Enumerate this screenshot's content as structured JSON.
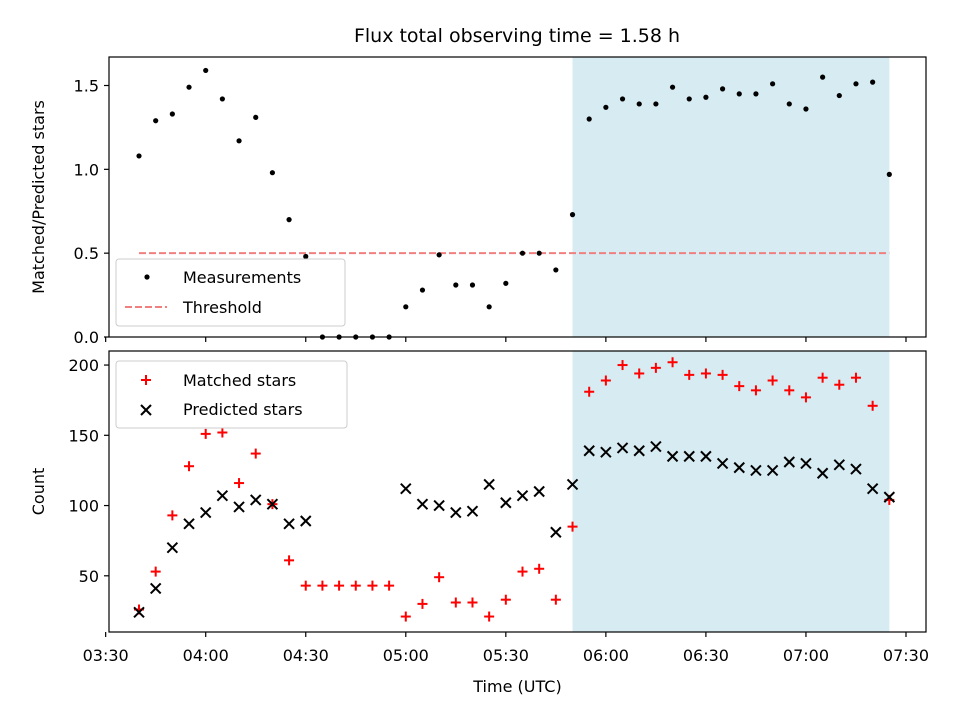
{
  "chart_data": [
    {
      "type": "scatter",
      "title": "Flux total observing time = 1.58 h",
      "xlabel": "",
      "ylabel": "Matched/Predicted stars",
      "ylim": [
        0,
        1.67
      ],
      "yticks": [
        0.0,
        0.5,
        1.0,
        1.5
      ],
      "ytick_labels": [
        "0.0",
        "0.5",
        "1.0",
        "1.5"
      ],
      "x_time_range": [
        "03:31",
        "07:36"
      ],
      "shaded_span": {
        "from": "05:50",
        "to": "07:25",
        "color": "#add8e6"
      },
      "legend": {
        "position": "lower-left",
        "entries": [
          "Measurements",
          "Threshold"
        ]
      },
      "threshold": {
        "name": "Threshold",
        "value": 0.5,
        "from": "03:40",
        "to": "07:25",
        "color": "#f08080",
        "style": "dashed"
      },
      "series": [
        {
          "name": "Measurements",
          "marker": "dot",
          "color": "#000000",
          "x": [
            "03:40",
            "03:45",
            "03:50",
            "03:55",
            "04:00",
            "04:05",
            "04:10",
            "04:15",
            "04:20",
            "04:25",
            "04:30",
            "04:35",
            "04:40",
            "04:45",
            "04:50",
            "04:55",
            "05:00",
            "05:05",
            "05:10",
            "05:15",
            "05:20",
            "05:25",
            "05:30",
            "05:35",
            "05:40",
            "05:45",
            "05:50",
            "05:55",
            "06:00",
            "06:05",
            "06:10",
            "06:15",
            "06:20",
            "06:25",
            "06:30",
            "06:35",
            "06:40",
            "06:45",
            "06:50",
            "06:55",
            "07:00",
            "07:05",
            "07:10",
            "07:15",
            "07:20",
            "07:25"
          ],
          "values": [
            1.08,
            1.29,
            1.33,
            1.49,
            1.59,
            1.42,
            1.17,
            1.31,
            0.98,
            0.7,
            0.48,
            0.0,
            0.0,
            0.0,
            0.0,
            0.0,
            0.18,
            0.28,
            0.49,
            0.31,
            0.31,
            0.18,
            0.32,
            0.5,
            0.5,
            0.4,
            0.73,
            1.3,
            1.37,
            1.42,
            1.39,
            1.39,
            1.49,
            1.42,
            1.43,
            1.48,
            1.45,
            1.45,
            1.51,
            1.39,
            1.36,
            1.55,
            1.44,
            1.51,
            1.52,
            0.97
          ]
        }
      ]
    },
    {
      "type": "scatter",
      "title": "",
      "xlabel": "Time (UTC)",
      "ylabel": "Count",
      "ylim": [
        10,
        210
      ],
      "yticks": [
        50,
        100,
        150,
        200
      ],
      "ytick_labels": [
        "50",
        "100",
        "150",
        "200"
      ],
      "xticks": [
        "03:30",
        "04:00",
        "04:30",
        "05:00",
        "05:30",
        "06:00",
        "06:30",
        "07:00",
        "07:30"
      ],
      "x_time_range": [
        "03:31",
        "07:36"
      ],
      "shaded_span": {
        "from": "05:50",
        "to": "07:25",
        "color": "#add8e6"
      },
      "legend": {
        "position": "upper-left",
        "entries": [
          "Matched stars",
          "Predicted stars"
        ]
      },
      "series": [
        {
          "name": "Matched stars",
          "marker": "plus",
          "color": "#ff0000",
          "x": [
            "03:40",
            "03:45",
            "03:50",
            "03:55",
            "04:00",
            "04:05",
            "04:10",
            "04:15",
            "04:20",
            "04:25",
            "04:30",
            "04:35",
            "04:40",
            "04:45",
            "04:50",
            "04:55",
            "05:00",
            "05:05",
            "05:10",
            "05:15",
            "05:20",
            "05:25",
            "05:30",
            "05:35",
            "05:40",
            "05:45",
            "05:50",
            "05:55",
            "06:00",
            "06:05",
            "06:10",
            "06:15",
            "06:20",
            "06:25",
            "06:30",
            "06:35",
            "06:40",
            "06:45",
            "06:50",
            "06:55",
            "07:00",
            "07:05",
            "07:10",
            "07:15",
            "07:20",
            "07:25"
          ],
          "values": [
            26,
            53,
            93,
            128,
            151,
            152,
            116,
            137,
            101,
            61,
            43,
            43,
            43,
            43,
            43,
            43,
            21,
            30,
            49,
            31,
            31,
            21,
            33,
            53,
            55,
            33,
            85,
            181,
            189,
            200,
            194,
            198,
            202,
            193,
            194,
            193,
            185,
            182,
            189,
            182,
            177,
            191,
            186,
            191,
            171,
            104
          ]
        },
        {
          "name": "Predicted stars",
          "marker": "x",
          "color": "#000000",
          "x": [
            "03:40",
            "03:45",
            "03:50",
            "03:55",
            "04:00",
            "04:05",
            "04:10",
            "04:15",
            "04:20",
            "04:25",
            "04:30",
            "05:00",
            "05:05",
            "05:10",
            "05:15",
            "05:20",
            "05:25",
            "05:30",
            "05:35",
            "05:40",
            "05:45",
            "05:50",
            "05:55",
            "06:00",
            "06:05",
            "06:10",
            "06:15",
            "06:20",
            "06:25",
            "06:30",
            "06:35",
            "06:40",
            "06:45",
            "06:50",
            "06:55",
            "07:00",
            "07:05",
            "07:10",
            "07:15",
            "07:20",
            "07:25"
          ],
          "values": [
            24,
            41,
            70,
            87,
            95,
            107,
            99,
            104,
            101,
            87,
            89,
            112,
            101,
            100,
            95,
            96,
            115,
            102,
            107,
            110,
            81,
            115,
            139,
            138,
            141,
            139,
            142,
            135,
            135,
            135,
            130,
            127,
            125,
            125,
            131,
            130,
            123,
            129,
            126,
            112,
            106
          ]
        }
      ]
    }
  ]
}
